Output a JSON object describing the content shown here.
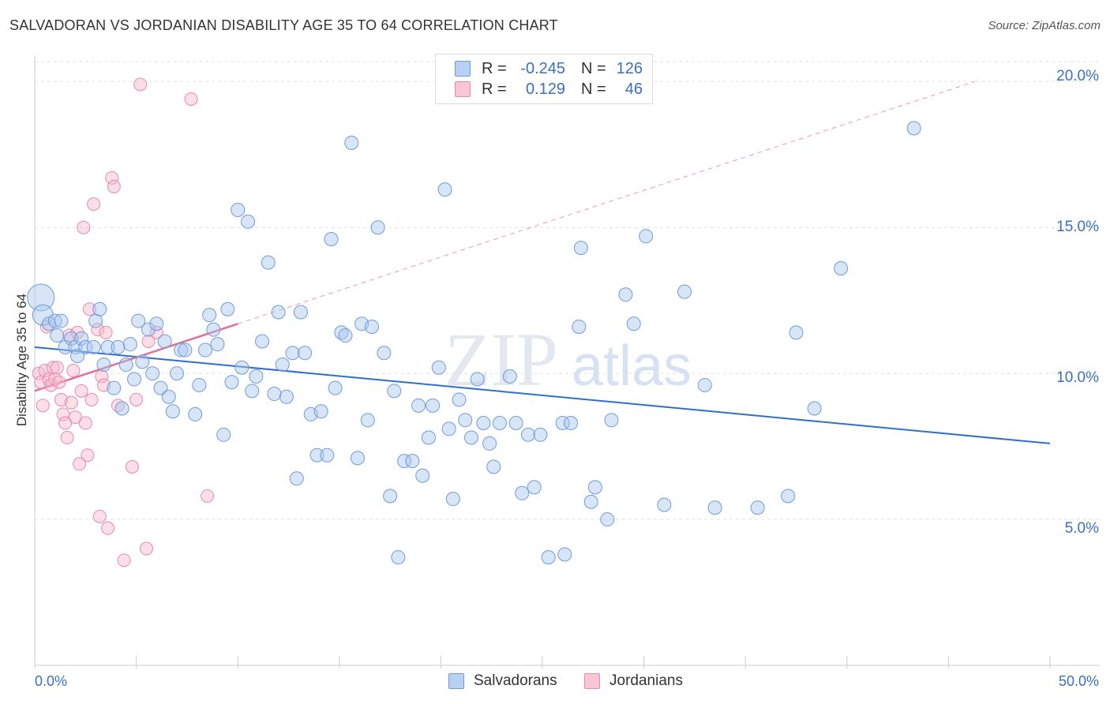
{
  "title": "SALVADORAN VS JORDANIAN DISABILITY AGE 35 TO 64 CORRELATION CHART",
  "source": "Source: ZipAtlas.com",
  "watermark": {
    "zip": "ZIP",
    "atlas": "atlas"
  },
  "legend_top": {
    "salvadorans": {
      "r_label": "R =",
      "r_value": "-0.245",
      "n_label": "N =",
      "n_value": "126"
    },
    "jordanians": {
      "r_label": "R =",
      "r_value": "0.129",
      "n_label": "N =",
      "n_value": "46"
    }
  },
  "legend_bottom": {
    "salvadorans": "Salvadorans",
    "jordanians": "Jordanians"
  },
  "colors": {
    "blue_fill": "#a9c5ee",
    "blue_stroke": "#6f9bdc",
    "blue_line": "#2f6fcc",
    "pink_fill": "#f5b8cb",
    "pink_stroke": "#e88aa8",
    "pink_line": "#e0709a",
    "grid": "#e0e0e0",
    "axis_text": "#3a6fc4"
  },
  "chart_data": {
    "type": "scatter",
    "title": "SALVADORAN VS JORDANIAN DISABILITY AGE 35 TO 64 CORRELATION CHART",
    "xlabel": "",
    "ylabel": "Disability Age 35 to 64",
    "xlim": [
      0,
      50
    ],
    "ylim": [
      0,
      20.9
    ],
    "x_tick_labels": [
      "0.0%",
      "50.0%"
    ],
    "y_ticks": [
      5,
      10,
      15,
      20
    ],
    "y_tick_labels": [
      "5.0%",
      "10.0%",
      "15.0%",
      "20.0%"
    ],
    "series": [
      {
        "name": "Salvadorans",
        "R": -0.245,
        "N": 126,
        "trend": {
          "x": [
            0,
            50
          ],
          "y": [
            10.9,
            7.6
          ]
        },
        "points": [
          [
            0.3,
            12.6
          ],
          [
            0.4,
            12.0
          ],
          [
            0.7,
            11.7
          ],
          [
            1.0,
            11.8
          ],
          [
            1.1,
            11.3
          ],
          [
            1.3,
            11.8
          ],
          [
            1.5,
            10.9
          ],
          [
            1.8,
            11.2
          ],
          [
            2.0,
            10.9
          ],
          [
            2.1,
            10.6
          ],
          [
            2.3,
            11.2
          ],
          [
            2.5,
            10.9
          ],
          [
            2.9,
            10.9
          ],
          [
            3.0,
            11.8
          ],
          [
            3.2,
            12.2
          ],
          [
            3.4,
            10.3
          ],
          [
            3.6,
            10.9
          ],
          [
            3.9,
            9.5
          ],
          [
            4.1,
            10.9
          ],
          [
            4.3,
            8.8
          ],
          [
            4.5,
            10.3
          ],
          [
            4.7,
            11.0
          ],
          [
            4.9,
            9.8
          ],
          [
            5.1,
            11.8
          ],
          [
            5.3,
            10.4
          ],
          [
            5.6,
            11.5
          ],
          [
            5.8,
            10.0
          ],
          [
            6.0,
            11.7
          ],
          [
            6.2,
            9.5
          ],
          [
            6.4,
            11.1
          ],
          [
            6.6,
            9.2
          ],
          [
            6.8,
            8.7
          ],
          [
            7.0,
            10.0
          ],
          [
            7.2,
            10.8
          ],
          [
            7.4,
            10.8
          ],
          [
            7.9,
            8.6
          ],
          [
            8.1,
            9.6
          ],
          [
            8.4,
            10.8
          ],
          [
            8.6,
            12.0
          ],
          [
            8.8,
            11.5
          ],
          [
            9.0,
            11.0
          ],
          [
            9.3,
            7.9
          ],
          [
            9.5,
            12.2
          ],
          [
            9.7,
            9.7
          ],
          [
            10.0,
            15.6
          ],
          [
            10.2,
            10.2
          ],
          [
            10.5,
            15.2
          ],
          [
            10.7,
            9.4
          ],
          [
            10.9,
            9.9
          ],
          [
            11.2,
            11.1
          ],
          [
            11.5,
            13.8
          ],
          [
            11.8,
            9.3
          ],
          [
            12.0,
            12.1
          ],
          [
            12.2,
            10.3
          ],
          [
            12.4,
            9.2
          ],
          [
            12.7,
            10.7
          ],
          [
            12.9,
            6.4
          ],
          [
            13.1,
            12.1
          ],
          [
            13.3,
            10.7
          ],
          [
            13.6,
            8.6
          ],
          [
            13.9,
            7.2
          ],
          [
            14.1,
            8.7
          ],
          [
            14.4,
            7.2
          ],
          [
            14.6,
            14.6
          ],
          [
            14.8,
            9.5
          ],
          [
            15.1,
            11.4
          ],
          [
            15.3,
            11.3
          ],
          [
            15.6,
            17.9
          ],
          [
            15.9,
            7.1
          ],
          [
            16.1,
            11.7
          ],
          [
            16.4,
            8.4
          ],
          [
            16.6,
            11.6
          ],
          [
            16.9,
            15.0
          ],
          [
            17.2,
            10.7
          ],
          [
            17.5,
            5.8
          ],
          [
            17.7,
            9.4
          ],
          [
            17.9,
            3.7
          ],
          [
            18.2,
            7.0
          ],
          [
            18.6,
            7.0
          ],
          [
            18.9,
            8.9
          ],
          [
            19.1,
            6.5
          ],
          [
            19.4,
            7.8
          ],
          [
            19.6,
            8.9
          ],
          [
            19.9,
            10.2
          ],
          [
            20.2,
            16.3
          ],
          [
            20.4,
            8.1
          ],
          [
            20.6,
            5.7
          ],
          [
            20.9,
            9.1
          ],
          [
            21.2,
            8.4
          ],
          [
            21.5,
            7.8
          ],
          [
            21.8,
            9.8
          ],
          [
            22.1,
            8.3
          ],
          [
            22.4,
            7.6
          ],
          [
            22.6,
            6.8
          ],
          [
            22.9,
            8.3
          ],
          [
            23.4,
            9.9
          ],
          [
            23.7,
            8.3
          ],
          [
            24.0,
            5.9
          ],
          [
            24.3,
            7.9
          ],
          [
            24.6,
            6.1
          ],
          [
            24.9,
            7.9
          ],
          [
            25.3,
            3.7
          ],
          [
            26.0,
            8.3
          ],
          [
            26.1,
            3.8
          ],
          [
            26.4,
            8.3
          ],
          [
            26.8,
            11.6
          ],
          [
            26.9,
            14.3
          ],
          [
            27.4,
            5.6
          ],
          [
            27.6,
            6.1
          ],
          [
            28.2,
            5.0
          ],
          [
            28.4,
            8.4
          ],
          [
            29.1,
            12.7
          ],
          [
            29.5,
            11.7
          ],
          [
            30.1,
            14.7
          ],
          [
            31.0,
            5.5
          ],
          [
            32.0,
            12.8
          ],
          [
            33.0,
            9.6
          ],
          [
            33.5,
            5.4
          ],
          [
            35.6,
            5.4
          ],
          [
            37.1,
            5.8
          ],
          [
            37.5,
            11.4
          ],
          [
            38.4,
            8.8
          ],
          [
            39.7,
            13.6
          ],
          [
            43.3,
            18.4
          ]
        ]
      },
      {
        "name": "Jordanians",
        "R": 0.129,
        "N": 46,
        "trend": {
          "x": [
            0,
            10
          ],
          "y": [
            9.4,
            11.7
          ]
        },
        "trend_extended": {
          "x": [
            10,
            46.3
          ],
          "y": [
            11.7,
            20.0
          ]
        },
        "points": [
          [
            0.2,
            10.0
          ],
          [
            0.3,
            9.7
          ],
          [
            0.4,
            8.9
          ],
          [
            0.5,
            10.1
          ],
          [
            0.6,
            11.6
          ],
          [
            0.7,
            9.8
          ],
          [
            0.8,
            9.6
          ],
          [
            0.9,
            10.2
          ],
          [
            1.0,
            9.8
          ],
          [
            1.1,
            10.2
          ],
          [
            1.2,
            9.7
          ],
          [
            1.3,
            9.1
          ],
          [
            1.4,
            8.6
          ],
          [
            1.5,
            8.3
          ],
          [
            1.6,
            7.8
          ],
          [
            1.7,
            11.3
          ],
          [
            1.8,
            9.0
          ],
          [
            1.9,
            10.1
          ],
          [
            2.0,
            8.5
          ],
          [
            2.1,
            11.4
          ],
          [
            2.2,
            6.9
          ],
          [
            2.3,
            9.4
          ],
          [
            2.4,
            15.0
          ],
          [
            2.5,
            8.3
          ],
          [
            2.6,
            7.2
          ],
          [
            2.7,
            12.2
          ],
          [
            2.8,
            9.1
          ],
          [
            2.9,
            15.8
          ],
          [
            3.1,
            11.5
          ],
          [
            3.2,
            5.1
          ],
          [
            3.3,
            9.9
          ],
          [
            3.4,
            9.6
          ],
          [
            3.5,
            11.4
          ],
          [
            3.6,
            4.7
          ],
          [
            3.8,
            16.7
          ],
          [
            3.9,
            16.4
          ],
          [
            4.1,
            8.9
          ],
          [
            4.4,
            3.6
          ],
          [
            4.8,
            6.8
          ],
          [
            5.0,
            9.1
          ],
          [
            5.2,
            19.9
          ],
          [
            5.5,
            4.0
          ],
          [
            5.6,
            11.1
          ],
          [
            6.0,
            11.4
          ],
          [
            7.7,
            19.4
          ],
          [
            8.5,
            5.8
          ]
        ]
      }
    ]
  }
}
